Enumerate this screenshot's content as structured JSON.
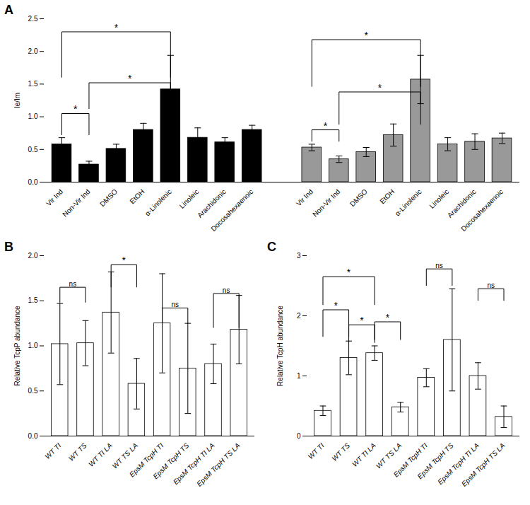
{
  "chart_data": [
    {
      "type": "bar",
      "title": "A",
      "ylabel": "Ie/Im",
      "categories": [
        "Vir Ind",
        "Non-Vir Ind",
        "DMSO",
        "EtOH",
        "α-Linolenic",
        "Linoleic",
        "Arachidonic",
        "Docosahexaenoic",
        "Vir Ind",
        "Non-Vir Ind",
        "DMSO",
        "EtOH",
        "α-Linolenic",
        "Linoleic",
        "Arachidonic",
        "Docosahexaenoic"
      ],
      "series": [
        {
          "color": "#000000",
          "values": [
            0.58,
            0.27,
            0.51,
            0.8,
            1.42,
            0.68,
            0.61,
            0.8,
            null,
            null,
            null,
            null,
            null,
            null,
            null,
            null
          ],
          "errors": [
            0.1,
            0.05,
            0.07,
            0.1,
            0.52,
            0.15,
            0.07,
            0.07,
            null,
            null,
            null,
            null,
            null,
            null,
            null,
            null
          ]
        },
        {
          "color": "#999999",
          "values": [
            null,
            null,
            null,
            null,
            null,
            null,
            null,
            null,
            0.53,
            0.35,
            0.46,
            0.72,
            1.57,
            0.58,
            0.62,
            0.67
          ],
          "errors": [
            null,
            null,
            null,
            null,
            null,
            null,
            null,
            null,
            0.05,
            0.05,
            0.07,
            0.17,
            0.37,
            0.1,
            0.12,
            0.08
          ]
        }
      ],
      "ylim": [
        0,
        2.5
      ],
      "yticks": [
        {
          "value": 0,
          "label": "0.0"
        },
        0.5,
        {
          "value": 1,
          "label": "1.0"
        },
        1.5,
        {
          "value": 2,
          "label": "2.0"
        },
        2.5
      ],
      "annotations": [
        {
          "text": "*",
          "x": [
            0,
            1
          ],
          "y": [
            0.72,
            1.05
          ]
        },
        {
          "text": "*",
          "x": [
            1,
            4
          ],
          "y": [
            1.12,
            1.52
          ]
        },
        {
          "text": "*",
          "x": [
            0,
            4
          ],
          "y": [
            1.6,
            2.3
          ]
        },
        {
          "text": "*",
          "x": [
            8,
            9
          ],
          "y": [
            0.62,
            0.8
          ]
        },
        {
          "text": "*",
          "x": [
            9,
            12
          ],
          "y": [
            0.88,
            1.38
          ]
        },
        {
          "text": "*",
          "x": [
            8,
            12
          ],
          "y": [
            1.46,
            2.18
          ]
        }
      ]
    },
    {
      "type": "bar",
      "title": "B",
      "ylabel": "Relative TcpP abundance",
      "categories": [
        "WT TI",
        "WT TS",
        "WT TI LA",
        "WT TS LA",
        "EpsM TcpH TI",
        "EpsM TcpH TS",
        "EpsM TcpH TI LA",
        "EpsM TcpH TS LA"
      ],
      "series": [
        {
          "color": "#ffffff",
          "values": [
            1.02,
            1.03,
            1.37,
            0.58,
            1.25,
            0.75,
            0.8,
            1.18
          ],
          "errors": [
            0.45,
            0.25,
            0.45,
            0.28,
            0.55,
            0.5,
            0.22,
            0.38
          ]
        }
      ],
      "ylim": [
        0,
        2.0
      ],
      "yticks": [
        {
          "value": 0,
          "label": "0.0"
        },
        0.5,
        {
          "value": 1,
          "label": "1.0"
        },
        1.5,
        {
          "value": 2,
          "label": "2.0"
        }
      ],
      "annotations": [
        {
          "text": "ns",
          "x": [
            0,
            1
          ],
          "y": [
            1.48,
            1.65
          ]
        },
        {
          "text": "*",
          "x": [
            2,
            3
          ],
          "y": [
            1.65,
            1.9
          ]
        },
        {
          "text": "ns",
          "x": [
            4,
            5
          ],
          "y": [
            1.25,
            1.42
          ]
        },
        {
          "text": "ns",
          "x": [
            6,
            7
          ],
          "y": [
            1.2,
            1.58
          ]
        }
      ]
    },
    {
      "type": "bar",
      "title": "C",
      "ylabel": "Relative TcpH abundance",
      "categories": [
        "WT TI",
        "WT TS",
        "WT TI LA",
        "WT TS LA",
        "EpsM TcpH TI",
        "EpsM TcpH TS",
        "EpsM TcpH TI LA",
        "EpsM TcpH TS LA"
      ],
      "series": [
        {
          "color": "#ffffff",
          "values": [
            0.42,
            1.3,
            1.38,
            0.48,
            0.97,
            1.6,
            1.0,
            0.32
          ],
          "errors": [
            0.08,
            0.28,
            0.12,
            0.08,
            0.15,
            0.85,
            0.22,
            0.18
          ]
        }
      ],
      "ylim": [
        0,
        3.0
      ],
      "yticks": [
        0,
        1,
        2,
        3
      ],
      "annotations": [
        {
          "text": "*",
          "x": [
            0,
            1
          ],
          "y": [
            1.65,
            2.1
          ]
        },
        {
          "text": "*",
          "x": [
            1,
            2
          ],
          "y": [
            1.55,
            1.85
          ]
        },
        {
          "text": "*",
          "x": [
            2,
            3
          ],
          "y": [
            1.6,
            1.9
          ]
        },
        {
          "text": "*",
          "x": [
            0,
            2
          ],
          "y": [
            2.18,
            2.65
          ]
        },
        {
          "text": "ns",
          "x": [
            4,
            5
          ],
          "y": [
            2.5,
            2.78
          ]
        },
        {
          "text": "ns",
          "x": [
            6,
            7
          ],
          "y": [
            2.25,
            2.45
          ]
        }
      ]
    }
  ]
}
